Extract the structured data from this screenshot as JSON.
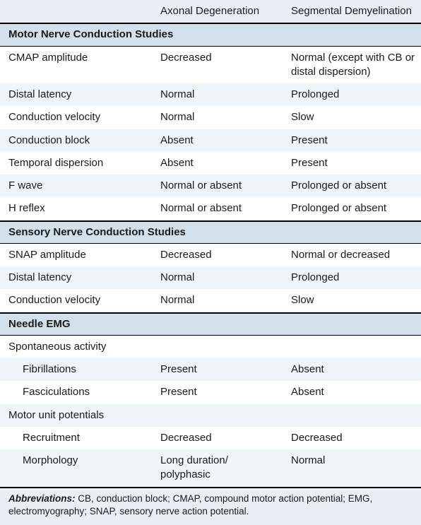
{
  "colors": {
    "header_bg": "#e9eff5",
    "section_bg": "#d2e0ec",
    "row_alt_bg": "#f0f5fa",
    "rule": "#000000",
    "text": "#1a1a1a"
  },
  "header": {
    "blank": "",
    "colA": "Axonal Degeneration",
    "colB": "Segmental Demyelination"
  },
  "sections": [
    {
      "title": "Motor Nerve Conduction Studies",
      "rows": [
        {
          "param": "CMAP amplitude",
          "a": "Decreased",
          "b": "Normal (except with CB or distal dispersion)"
        },
        {
          "param": "Distal latency",
          "a": "Normal",
          "b": "Prolonged"
        },
        {
          "param": "Conduction velocity",
          "a": "Normal",
          "b": "Slow"
        },
        {
          "param": "Conduction block",
          "a": "Absent",
          "b": "Present"
        },
        {
          "param": "Temporal dispersion",
          "a": "Absent",
          "b": "Present"
        },
        {
          "param": "F wave",
          "a": "Normal or absent",
          "b": "Prolonged or absent"
        },
        {
          "param": "H reflex",
          "a": "Normal or absent",
          "b": "Prolonged or absent"
        }
      ]
    },
    {
      "title": "Sensory Nerve Conduction Studies",
      "rows": [
        {
          "param": "SNAP amplitude",
          "a": "Decreased",
          "b": "Normal or decreased"
        },
        {
          "param": "Distal latency",
          "a": "Normal",
          "b": "Prolonged"
        },
        {
          "param": "Conduction velocity",
          "a": "Normal",
          "b": "Slow"
        }
      ]
    },
    {
      "title": "Needle EMG",
      "groups": [
        {
          "label": "Spontaneous activity",
          "rows": [
            {
              "param": "Fibrillations",
              "a": "Present",
              "b": "Absent"
            },
            {
              "param": "Fasciculations",
              "a": "Present",
              "b": "Absent"
            }
          ]
        },
        {
          "label": "Motor unit potentials",
          "rows": [
            {
              "param": "Recruitment",
              "a": "Decreased",
              "b": "Decreased"
            },
            {
              "param": "Morphology",
              "a": "Long duration/ polyphasic",
              "b": "Normal"
            }
          ]
        }
      ]
    }
  ],
  "footnote": {
    "label": "Abbreviations:",
    "text": " CB, conduction block; CMAP, compound motor action potential; EMG, electromyography; SNAP, sensory nerve action potential."
  }
}
